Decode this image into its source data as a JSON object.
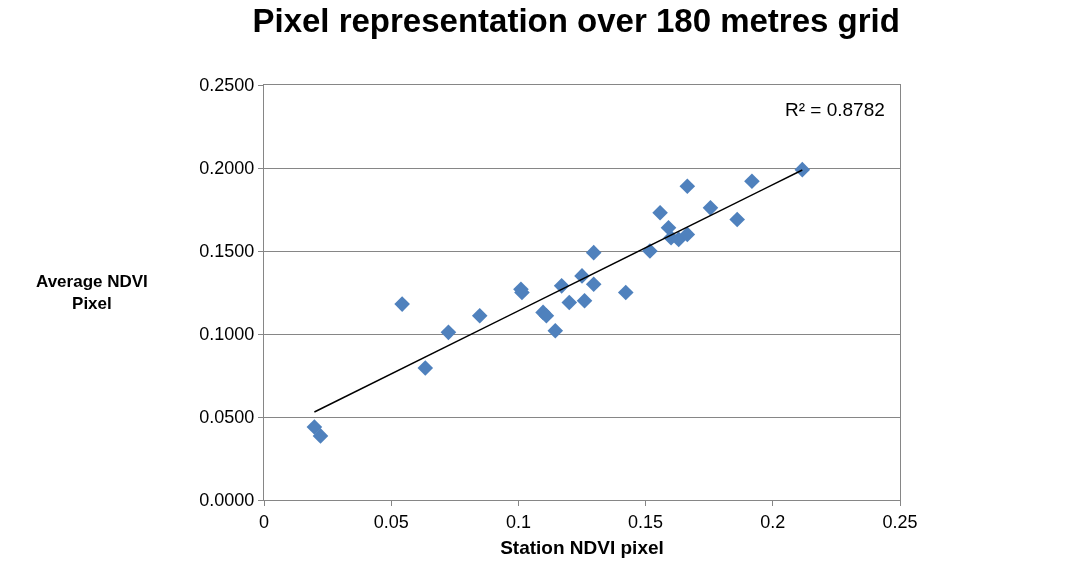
{
  "chart_data": {
    "type": "scatter",
    "title": "Pixel representation over 180 metres grid",
    "xlabel": "Station NDVI pixel",
    "ylabel": "Average NDVI Pixel",
    "xlim": [
      0,
      0.25
    ],
    "xticks": [
      0,
      0.05,
      0.1,
      0.15,
      0.2,
      0.25
    ],
    "ylim": [
      0,
      0.25
    ],
    "yticks": [
      {
        "value": 0,
        "label": "0.0000"
      },
      {
        "value": 0.05,
        "label": "0.0500"
      },
      {
        "value": 0.1,
        "label": "0.1000"
      },
      {
        "value": 0.15,
        "label": "0.1500"
      },
      {
        "value": 0.2,
        "label": "0.2000"
      },
      {
        "value": 0.25,
        "label": "0.2500"
      }
    ],
    "grid": "y",
    "marker": "diamond",
    "annotations": [
      "R² = 0.8782"
    ],
    "series": [
      {
        "type": "scatter",
        "color": "#4f81bd",
        "x": [
          0.0198,
          0.0222,
          0.0543,
          0.0634,
          0.0725,
          0.0848,
          0.101,
          0.1014,
          0.1097,
          0.111,
          0.1145,
          0.117,
          0.12,
          0.125,
          0.126,
          0.1296,
          0.1296,
          0.1422,
          0.1517,
          0.1557,
          0.159,
          0.16,
          0.163,
          0.1664,
          0.1664,
          0.1755,
          0.186,
          0.1918,
          0.2116
        ],
        "values": [
          0.044,
          0.0386,
          0.118,
          0.0795,
          0.101,
          0.111,
          0.127,
          0.125,
          0.113,
          0.111,
          0.102,
          0.129,
          0.119,
          0.135,
          0.12,
          0.13,
          0.149,
          0.125,
          0.15,
          0.173,
          0.164,
          0.158,
          0.157,
          0.16,
          0.189,
          0.176,
          0.169,
          0.192,
          0.199
        ]
      },
      {
        "type": "line",
        "color": "#000000",
        "x": [
          0.0198,
          0.2116
        ],
        "values": [
          0.053,
          0.1988
        ],
        "marker": "none",
        "line_style": "solid"
      }
    ]
  }
}
